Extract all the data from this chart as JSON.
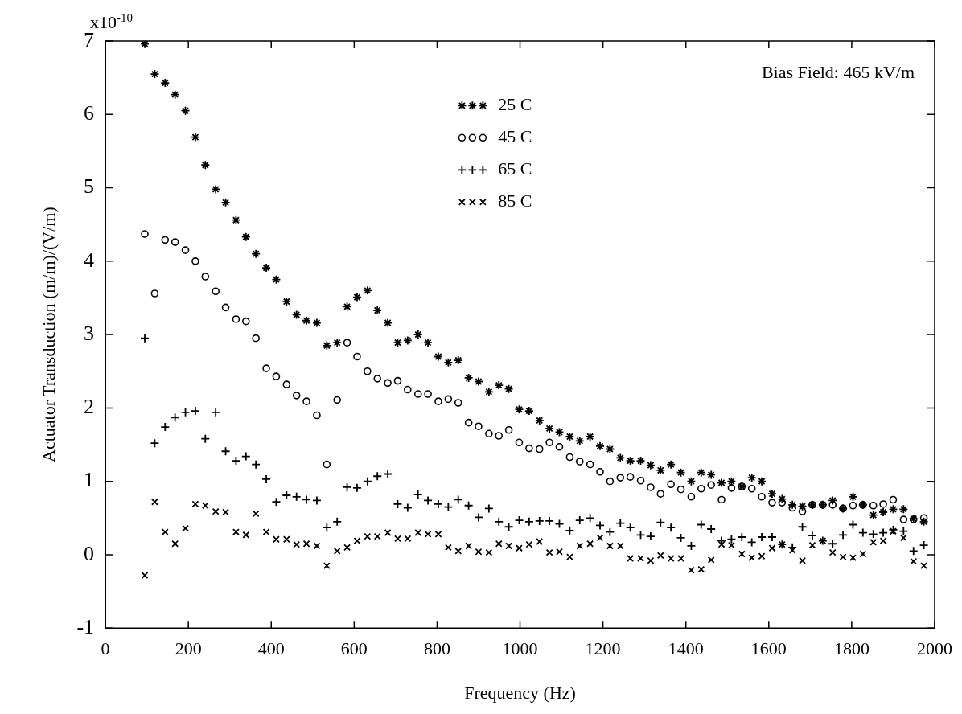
{
  "chart_data": {
    "type": "scatter",
    "xlabel": "Frequency (Hz)",
    "ylabel": "Actuator Transduction (m/m)/(V/m)",
    "annotations": [
      "x10$^{-10}$",
      "Bias Field: 465 kV/m"
    ],
    "x": [
      95,
      119,
      144,
      168,
      193,
      217,
      241,
      266,
      290,
      315,
      339,
      363,
      388,
      412,
      437,
      461,
      485,
      510,
      534,
      559,
      583,
      607,
      632,
      656,
      681,
      705,
      729,
      754,
      778,
      803,
      827,
      851,
      876,
      900,
      925,
      949,
      973,
      998,
      1022,
      1047,
      1071,
      1095,
      1120,
      1144,
      1169,
      1193,
      1217,
      1242,
      1266,
      1291,
      1315,
      1339,
      1364,
      1388,
      1413,
      1437,
      1461,
      1486,
      1510,
      1535,
      1559,
      1583,
      1608,
      1632,
      1657,
      1681,
      1705,
      1730,
      1754,
      1779,
      1803,
      1827,
      1852,
      1876,
      1900,
      1925,
      1949,
      1974
    ],
    "series": [
      {
        "name": "25 C",
        "color": "#000000",
        "values": [
          6.96,
          6.55,
          6.43,
          6.27,
          6.05,
          5.69,
          5.31,
          4.98,
          4.8,
          4.56,
          4.33,
          4.1,
          3.91,
          3.75,
          3.45,
          3.27,
          3.19,
          3.16,
          2.85,
          2.89,
          3.38,
          3.51,
          3.6,
          3.33,
          3.16,
          2.89,
          2.92,
          3.0,
          2.89,
          2.7,
          2.62,
          2.65,
          2.41,
          2.36,
          2.22,
          2.31,
          2.26,
          1.98,
          1.96,
          1.83,
          1.72,
          1.67,
          1.61,
          1.55,
          1.61,
          1.48,
          1.44,
          1.32,
          1.28,
          1.28,
          1.22,
          1.15,
          1.23,
          1.12,
          1.0,
          1.12,
          1.09,
          0.98,
          1.0,
          0.93,
          1.05,
          1.0,
          0.83,
          0.76,
          0.68,
          0.66,
          0.68,
          0.68,
          0.74,
          0.63,
          0.79,
          0.68,
          0.54,
          0.58,
          0.62,
          0.62,
          0.49,
          0.45
        ]
      },
      {
        "name": "45 C",
        "color": "#000000",
        "marker": "circle",
        "values": [
          4.37,
          3.56,
          4.29,
          4.26,
          4.15,
          4.0,
          3.79,
          3.59,
          3.37,
          3.21,
          3.18,
          2.95,
          2.54,
          2.43,
          2.32,
          2.17,
          2.09,
          1.9,
          1.23,
          2.11,
          2.89,
          2.7,
          2.5,
          2.4,
          2.34,
          2.37,
          2.25,
          2.19,
          2.19,
          2.09,
          2.12,
          2.07,
          1.8,
          1.75,
          1.65,
          1.62,
          1.7,
          1.53,
          1.45,
          1.44,
          1.53,
          1.47,
          1.33,
          1.27,
          1.23,
          1.13,
          1.0,
          1.05,
          1.06,
          1.01,
          0.92,
          0.83,
          0.96,
          0.89,
          0.79,
          0.9,
          0.95,
          0.75,
          0.91,
          0.93,
          0.9,
          0.79,
          0.71,
          0.71,
          0.64,
          0.59,
          0.68,
          0.68,
          0.68,
          0.63,
          0.67,
          0.68,
          0.67,
          0.69,
          0.75,
          0.48,
          0.48,
          0.5
        ]
      },
      {
        "name": "65 C",
        "color": "#000000",
        "marker": "plus",
        "values": [
          2.95,
          1.52,
          1.74,
          1.87,
          1.94,
          1.96,
          1.58,
          1.94,
          1.41,
          1.28,
          1.34,
          1.23,
          1.03,
          0.72,
          0.81,
          0.79,
          0.75,
          0.74,
          0.37,
          0.45,
          0.92,
          0.91,
          1.0,
          1.07,
          1.1,
          0.69,
          0.64,
          0.82,
          0.74,
          0.69,
          0.65,
          0.75,
          0.67,
          0.51,
          0.63,
          0.45,
          0.38,
          0.47,
          0.45,
          0.46,
          0.46,
          0.42,
          0.33,
          0.47,
          0.5,
          0.4,
          0.31,
          0.43,
          0.37,
          0.27,
          0.25,
          0.44,
          0.37,
          0.23,
          0.12,
          0.41,
          0.35,
          0.19,
          0.21,
          0.24,
          0.17,
          0.24,
          0.24,
          0.14,
          0.1,
          0.38,
          0.26,
          0.19,
          0.15,
          0.27,
          0.41,
          0.3,
          0.28,
          0.3,
          0.34,
          0.32,
          0.05,
          0.13
        ]
      },
      {
        "name": "85 C",
        "color": "#000000",
        "marker": "cross",
        "values": [
          -0.28,
          0.72,
          0.31,
          0.15,
          0.36,
          0.69,
          0.67,
          0.59,
          0.58,
          0.31,
          0.27,
          0.56,
          0.31,
          0.21,
          0.21,
          0.14,
          0.15,
          0.12,
          -0.15,
          0.05,
          0.1,
          0.19,
          0.25,
          0.25,
          0.3,
          0.22,
          0.22,
          0.3,
          0.28,
          0.28,
          0.1,
          0.05,
          0.12,
          0.04,
          0.03,
          0.15,
          0.12,
          0.09,
          0.14,
          0.18,
          0.03,
          0.04,
          -0.03,
          0.12,
          0.15,
          0.23,
          0.12,
          0.12,
          -0.05,
          -0.05,
          -0.08,
          -0.01,
          -0.05,
          -0.05,
          -0.21,
          -0.2,
          -0.07,
          0.14,
          0.13,
          0.01,
          -0.04,
          -0.02,
          0.09,
          0.14,
          0.06,
          -0.08,
          0.13,
          0.19,
          0.03,
          -0.03,
          -0.04,
          0.01,
          0.17,
          0.19,
          0.32,
          0.23,
          -0.09,
          -0.15
        ]
      }
    ],
    "xlim": [
      0,
      2000
    ],
    "xticks": [
      0,
      200,
      400,
      600,
      800,
      1000,
      1200,
      1400,
      1600,
      1800,
      2000
    ],
    "ylim": [
      -1,
      7
    ],
    "yticks": [
      -1,
      0,
      1,
      2,
      3,
      4,
      5,
      6,
      7
    ],
    "legend": "top"
  }
}
